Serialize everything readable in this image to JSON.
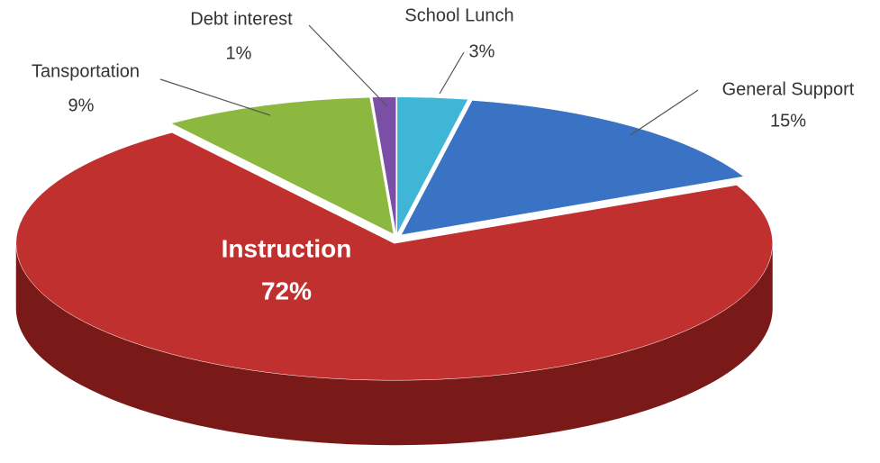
{
  "chart_data": {
    "type": "pie",
    "categories": [
      "School Lunch",
      "General Support",
      "Instruction",
      "Tansportation",
      "Debt interest"
    ],
    "values": [
      3,
      15,
      72,
      9,
      1
    ],
    "value_labels": [
      "3%",
      "15%",
      "72%",
      "9%",
      "1%"
    ],
    "colors": [
      "#3fb6d6",
      "#3a73c4",
      "#c0302e",
      "#8cb840",
      "#7b4fa5"
    ],
    "side_colors": [
      "#2a8aa6",
      "#1f4a88",
      "#7a1a18",
      "#5a7d22",
      "#4f2f73"
    ]
  }
}
